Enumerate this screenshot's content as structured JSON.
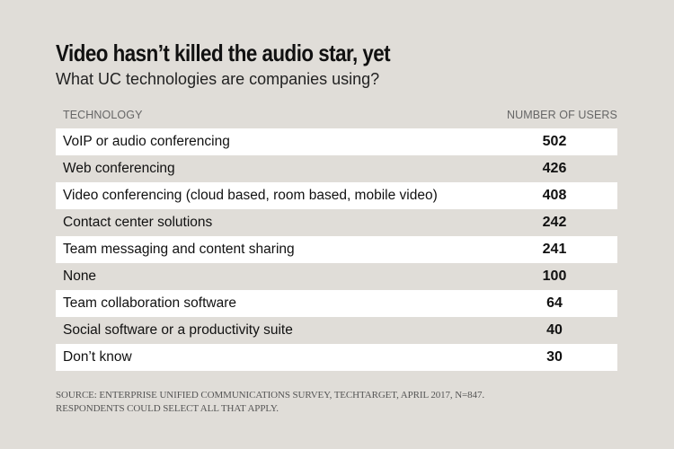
{
  "title": "Video hasn’t killed the audio star, yet",
  "subtitle": "What UC technologies are companies using?",
  "chart_data": {
    "type": "table",
    "columns": [
      "TECHNOLOGY",
      "NUMBER OF USERS"
    ],
    "rows": [
      {
        "label": "VoIP or audio conferencing",
        "value": 502
      },
      {
        "label": "Web conferencing",
        "value": 426
      },
      {
        "label": "Video conferencing (cloud based, room based, mobile video)",
        "value": 408
      },
      {
        "label": "Contact center solutions",
        "value": 242
      },
      {
        "label": "Team messaging and content sharing",
        "value": 241
      },
      {
        "label": "None",
        "value": 100
      },
      {
        "label": "Team collaboration software",
        "value": 64
      },
      {
        "label": "Social software or a productivity suite",
        "value": 40
      },
      {
        "label": "Don’t know",
        "value": 30
      }
    ]
  },
  "source": {
    "line1": "SOURCE: ENTERPRISE UNIFIED COMMUNICATIONS SURVEY, TECHTARGET, APRIL 2017, N=847.",
    "line2": "RESPONDENTS COULD SELECT ALL THAT APPLY."
  },
  "colors": {
    "background": "#e0ddd8",
    "row_highlight": "#ffffff",
    "text": "#111111"
  }
}
